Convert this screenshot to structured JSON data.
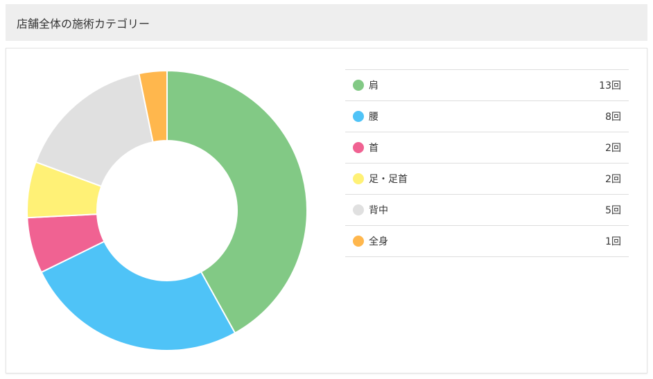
{
  "header": {
    "title": "店舗全体の施術カテゴリー"
  },
  "chart_data": {
    "type": "pie",
    "variant": "donut",
    "title": "",
    "unit": "回",
    "legend_position": "right",
    "slices": [
      {
        "label": "肩",
        "value": 13,
        "display": "13回",
        "color": "#82c985"
      },
      {
        "label": "腰",
        "value": 8,
        "display": "8回",
        "color": "#4fc3f7"
      },
      {
        "label": "首",
        "value": 2,
        "display": "2回",
        "color": "#f06292"
      },
      {
        "label": "足・足首",
        "value": 2,
        "display": "2回",
        "color": "#fff176"
      },
      {
        "label": "背中",
        "value": 5,
        "display": "5回",
        "color": "#e0e0e0"
      },
      {
        "label": "全身",
        "value": 1,
        "display": "1回",
        "color": "#ffb74d"
      }
    ]
  }
}
